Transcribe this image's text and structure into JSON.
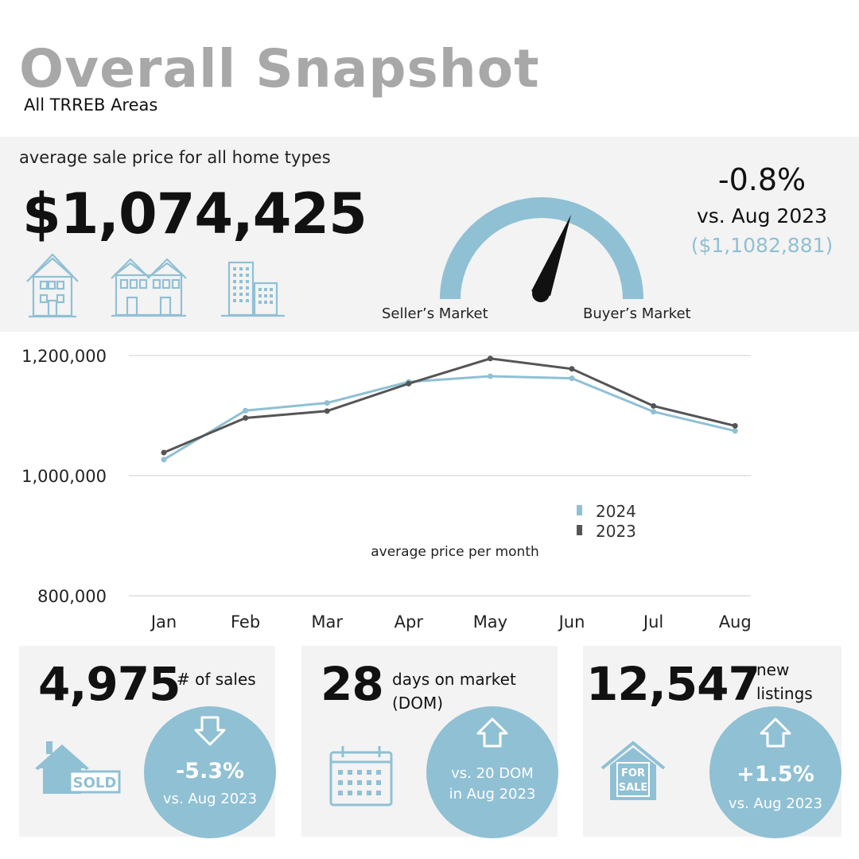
{
  "header": {
    "title": "Overall Snapshot",
    "subtitle": "All TRREB Areas"
  },
  "summary": {
    "label": "average sale price for all home types",
    "price": "$1,074,425",
    "change": "-0.8%",
    "vs": "vs. Aug 2023",
    "prior_price": "($1,1082,881)",
    "gauge_left_label": "Seller’s Market",
    "gauge_right_label": "Buyer’s Market",
    "icons": [
      "detached-house-icon",
      "townhouse-icon",
      "condo-building-icon"
    ]
  },
  "cards": {
    "sales": {
      "value": "4,975",
      "label": "# of sales",
      "change": "-5.3%",
      "vs": "vs. Aug 2023",
      "direction": "down",
      "icon": "sold-house-icon",
      "icon_text": "SOLD"
    },
    "dom": {
      "value": "28",
      "label_line1": "days on market",
      "label_line2": "(DOM)",
      "line1": "vs. 20 DOM",
      "line2": "in Aug 2023",
      "direction": "up",
      "icon": "calendar-icon"
    },
    "listings": {
      "value": "12,547",
      "label_line1": "new",
      "label_line2": "listings",
      "change": "+1.5%",
      "vs": "vs. Aug 2023",
      "direction": "up",
      "icon": "for-sale-house-icon",
      "icon_text_1": "FOR",
      "icon_text_2": "SALE"
    }
  },
  "colors": {
    "accent": "#90c0d4",
    "dark_series": "#555555",
    "panel": "#f3f3f3",
    "title_gray": "#a8a8a8"
  },
  "chart_data": {
    "type": "line",
    "categories": [
      "Jan",
      "Feb",
      "Mar",
      "Apr",
      "May",
      "Jun",
      "Jul",
      "Aug"
    ],
    "series": [
      {
        "name": "2024",
        "color": "#90c0d4",
        "values": [
          1026700,
          1108300,
          1121000,
          1156100,
          1165500,
          1162100,
          1106500,
          1074425
        ]
      },
      {
        "name": "2023",
        "color": "#555555",
        "values": [
          1038400,
          1096000,
          1107500,
          1153200,
          1195000,
          1177800,
          1116000,
          1082900
        ]
      }
    ],
    "yticks": [
      "1,200,000",
      "1,000,000",
      "800,000"
    ],
    "ytick_values": [
      1200000,
      1000000,
      800000
    ],
    "ylim": [
      800000,
      1200000
    ],
    "caption": "average price per month",
    "legend_placement": "bottom-center",
    "grid": true
  }
}
